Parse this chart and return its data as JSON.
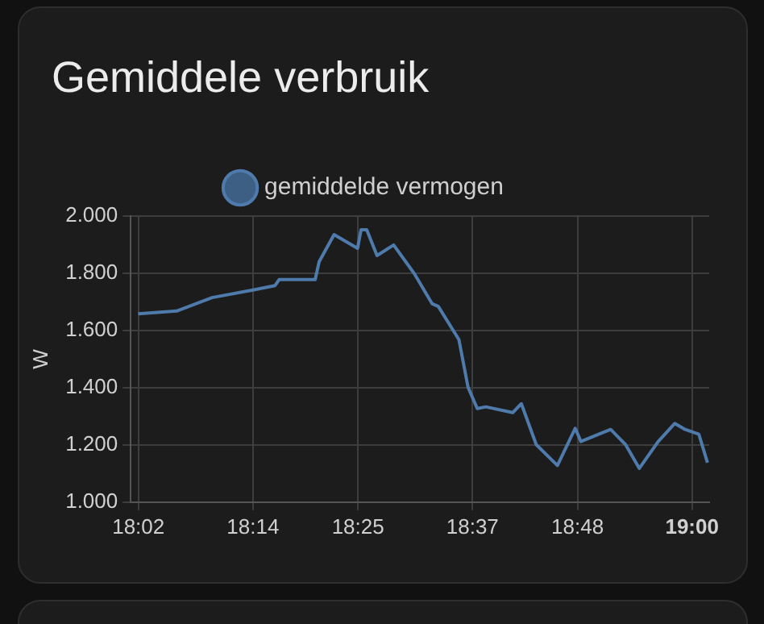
{
  "chart_data": {
    "type": "line",
    "title": "Gemiddele verbruik",
    "ylabel": "W",
    "x": [
      18.033,
      18.1,
      18.162,
      18.235,
      18.272,
      18.279,
      18.342,
      18.349,
      18.375,
      18.416,
      18.422,
      18.432,
      18.45,
      18.479,
      18.515,
      18.546,
      18.557,
      18.593,
      18.609,
      18.625,
      18.64,
      18.687,
      18.702,
      18.728,
      18.765,
      18.796,
      18.806,
      18.837,
      18.858,
      18.884,
      18.908,
      18.941,
      18.97,
      18.988,
      19.012,
      19.027
    ],
    "series": [
      {
        "name": "gemiddelde vermogen",
        "color": "#4e7bab",
        "values": [
          1658,
          1668,
          1715,
          1742,
          1757,
          1778,
          1778,
          1841,
          1935,
          1887,
          1952,
          1952,
          1862,
          1899,
          1799,
          1694,
          1684,
          1568,
          1401,
          1327,
          1333,
          1313,
          1344,
          1201,
          1128,
          1258,
          1212,
          1237,
          1254,
          1201,
          1118,
          1212,
          1275,
          1254,
          1237,
          1138
        ]
      }
    ],
    "xlim": [
      18.02,
      19.03
    ],
    "xticks": [
      {
        "value": 18.0333,
        "label": "18:02"
      },
      {
        "value": 18.2333,
        "label": "18:14"
      },
      {
        "value": 18.4167,
        "label": "18:25"
      },
      {
        "value": 18.6167,
        "label": "18:37"
      },
      {
        "value": 18.8,
        "label": "18:48"
      },
      {
        "value": 19,
        "label": "19:00"
      }
    ],
    "ylim": [
      1000,
      2000
    ],
    "yticks": [
      {
        "value": 1000,
        "label": "1.000"
      },
      {
        "value": 1200,
        "label": "1.200"
      },
      {
        "value": 1400,
        "label": "1.400"
      },
      {
        "value": 1600,
        "label": "1.600"
      },
      {
        "value": 1800,
        "label": "1.800"
      },
      {
        "value": 2000,
        "label": "2.000"
      }
    ],
    "grid": true,
    "legend": "top",
    "marker": "none",
    "line_style": "solid"
  }
}
